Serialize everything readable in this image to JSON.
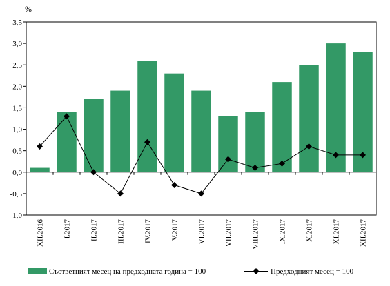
{
  "chart_data": {
    "type": "bar",
    "unit": "%",
    "categories": [
      "XII.2016",
      "I.2017",
      "II.2017",
      "III.2017",
      "IV.2017",
      "V.2017",
      "VI.2017",
      "VII.2017",
      "VIII.2017",
      "IX.2017",
      "X.2017",
      "XI.2017",
      "XII.2017"
    ],
    "series": [
      {
        "name": "Съответният месец на предходната година = 100",
        "type": "bar",
        "color": "#339966",
        "values": [
          0.1,
          1.4,
          1.7,
          1.9,
          2.6,
          2.3,
          1.9,
          1.3,
          1.4,
          2.1,
          2.5,
          3.0,
          2.8
        ]
      },
      {
        "name": "Предходният месец = 100",
        "type": "line",
        "marker": "diamond",
        "color": "#000000",
        "values": [
          0.6,
          1.3,
          0.0,
          -0.5,
          0.7,
          -0.3,
          -0.5,
          0.3,
          0.1,
          0.2,
          0.6,
          0.4,
          0.4
        ]
      }
    ],
    "ylim": [
      -1.0,
      3.5
    ],
    "yticks": [
      "3,5",
      "3,0",
      "2,5",
      "2,0",
      "1,5",
      "1,0",
      "0,5",
      "0,0",
      "-0,5",
      "-1,0"
    ],
    "grid": false,
    "legend_position": "bottom"
  }
}
